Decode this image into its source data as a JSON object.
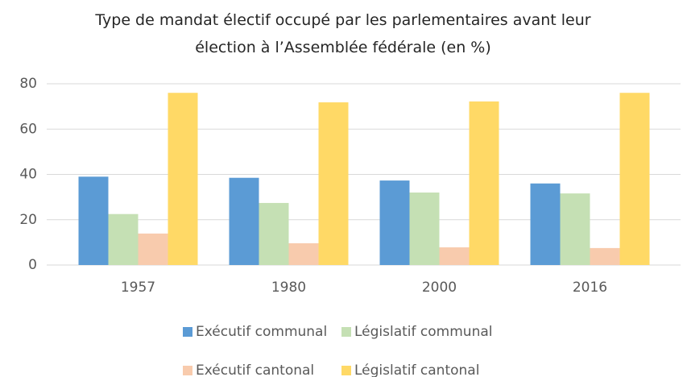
{
  "chart_data": {
    "type": "bar",
    "title": "Type de mandat électif occupé par les parlementaires avant leur élection à l’Assemblée fédérale (en %)",
    "categories": [
      "1957",
      "1980",
      "2000",
      "2016"
    ],
    "series": [
      {
        "name": "Exécutif communal",
        "color": "#5b9bd5",
        "values": [
          39,
          38.5,
          37.3,
          36
        ]
      },
      {
        "name": "Législatif communal",
        "color": "#c5e0b4",
        "values": [
          22.5,
          27.4,
          32,
          31.6
        ]
      },
      {
        "name": "Exécutif cantonal",
        "color": "#f8cbad",
        "values": [
          13.9,
          9.6,
          7.8,
          7.5
        ]
      },
      {
        "name": "Législatif cantonal",
        "color": "#ffd966",
        "values": [
          76,
          71.8,
          72.2,
          76
        ]
      }
    ],
    "ylim": [
      0,
      80
    ],
    "yticks": [
      0,
      20,
      40,
      60,
      80
    ],
    "grid": true
  }
}
